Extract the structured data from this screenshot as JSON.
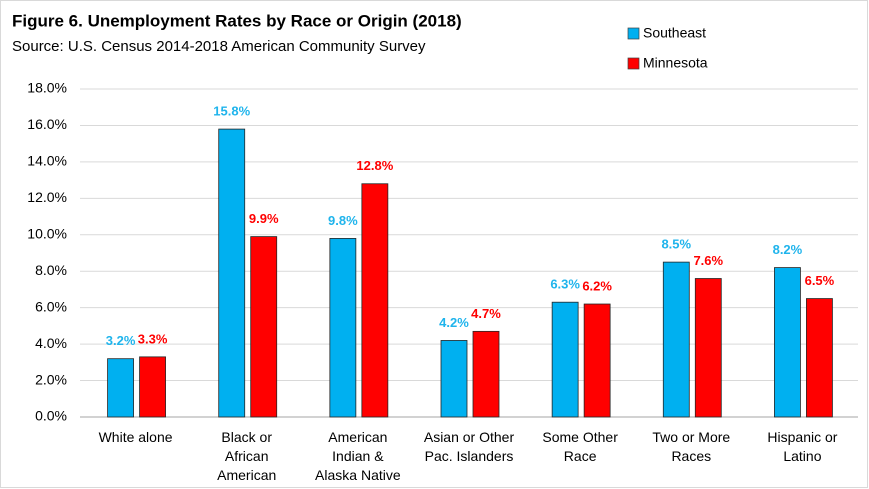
{
  "chart_data": {
    "type": "bar",
    "title": "Figure 6. Unemployment Rates by Race or Origin (2018)",
    "subtitle": "Source: U.S. Census 2014-2018 American Community Survey",
    "categories": [
      "White alone",
      "Black or\nAfrican\nAmerican",
      "American\nIndian &\nAlaska Native",
      "Asian or Other\nPac. Islanders",
      "Some Other\nRace",
      "Two or More\nRaces",
      "Hispanic or\nLatino"
    ],
    "series": [
      {
        "name": "Southeast",
        "color": "#00b0f0",
        "label_color": "#1fb4ec",
        "values": [
          3.2,
          15.8,
          9.8,
          4.2,
          6.3,
          8.5,
          8.2
        ],
        "value_labels": [
          "3.2%",
          "15.8%",
          "9.8%",
          "4.2%",
          "6.3%",
          "8.5%",
          "8.2%"
        ]
      },
      {
        "name": "Minnesota",
        "color": "#ff0000",
        "label_color": "#ff0000",
        "values": [
          3.3,
          9.9,
          12.8,
          4.7,
          6.2,
          7.6,
          6.5
        ],
        "value_labels": [
          "3.3%",
          "9.9%",
          "12.8%",
          "4.7%",
          "6.2%",
          "7.6%",
          "6.5%"
        ]
      }
    ],
    "ylim": [
      0,
      18
    ],
    "yticks": [
      {
        "value": 0,
        "label": "0.0%"
      },
      {
        "value": 2,
        "label": "2.0%"
      },
      {
        "value": 4,
        "label": "4.0%"
      },
      {
        "value": 6,
        "label": "6.0%"
      },
      {
        "value": 8,
        "label": "8.0%"
      },
      {
        "value": 10,
        "label": "10.0%"
      },
      {
        "value": 12,
        "label": "12.0%"
      },
      {
        "value": 14,
        "label": "14.0%"
      },
      {
        "value": 16,
        "label": "16.0%"
      },
      {
        "value": 18,
        "label": "18.0%"
      }
    ],
    "grid": true,
    "legend": "top-right"
  }
}
